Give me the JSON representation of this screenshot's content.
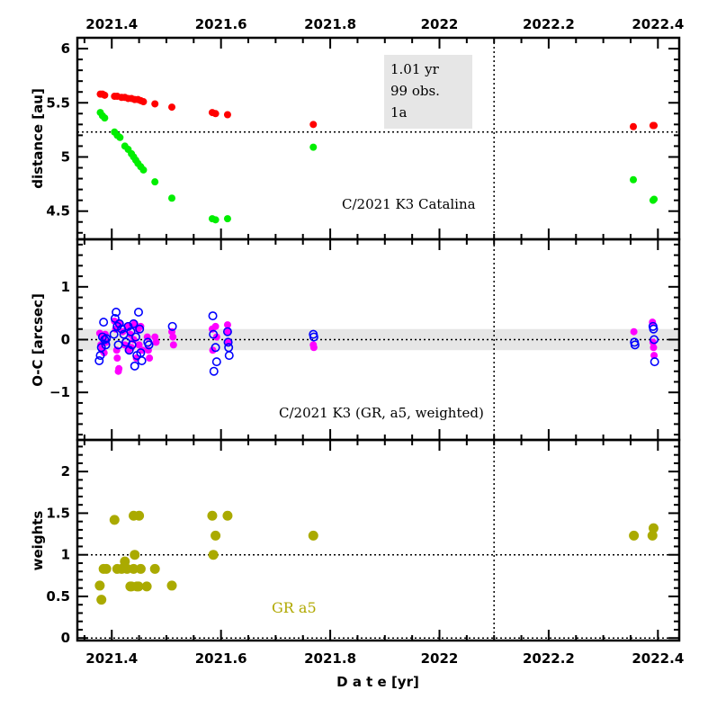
{
  "chart_data": {
    "type": "scatter",
    "xlabel": "D a t e [yr]",
    "xlim": [
      2021.337,
      2022.439
    ],
    "x_ticks": [
      "2021.4",
      "2021.6",
      "2021.8",
      "2022",
      "2022.2",
      "2022.4"
    ],
    "x_tick_values": [
      2021.4,
      2021.6,
      2021.8,
      2022.0,
      2022.2,
      2022.4
    ],
    "vertical_reference_line": 2022.1,
    "panels": [
      {
        "id": "distance",
        "ylabel": "distance [au]",
        "ylim": [
          4.24,
          6.1
        ],
        "y_ticks": [
          "4.5",
          "5",
          "5.5",
          "6"
        ],
        "y_tick_values": [
          4.5,
          5.0,
          5.5,
          6.0
        ],
        "horizontal_reference_line": 5.23,
        "annotation": "C/2021 K3 Catalina",
        "info_box": [
          "1.01 yr",
          "99 obs.",
          "1a"
        ],
        "series": [
          {
            "name": "heliocentric distance",
            "color": "#ff0000",
            "x": [
              2021.379,
              2021.383,
              2021.387,
              2021.405,
              2021.41,
              2021.418,
              2021.424,
              2021.43,
              2021.436,
              2021.442,
              2021.448,
              2021.453,
              2021.458,
              2021.479,
              2021.51,
              2021.584,
              2021.59,
              2021.612,
              2021.769,
              2022.355,
              2022.391,
              2022.393
            ],
            "y": [
              5.58,
              5.58,
              5.57,
              5.56,
              5.56,
              5.55,
              5.55,
              5.54,
              5.54,
              5.53,
              5.53,
              5.52,
              5.51,
              5.49,
              5.46,
              5.41,
              5.4,
              5.39,
              5.3,
              5.28,
              5.29,
              5.29
            ]
          },
          {
            "name": "geocentric distance",
            "color": "#00ee00",
            "x": [
              2021.379,
              2021.383,
              2021.387,
              2021.405,
              2021.41,
              2021.415,
              2021.424,
              2021.43,
              2021.436,
              2021.44,
              2021.444,
              2021.448,
              2021.453,
              2021.458,
              2021.479,
              2021.51,
              2021.584,
              2021.59,
              2021.612,
              2021.769,
              2022.355,
              2022.391,
              2022.393
            ],
            "y": [
              5.41,
              5.38,
              5.36,
              5.23,
              5.2,
              5.18,
              5.1,
              5.07,
              5.03,
              5.0,
              4.97,
              4.94,
              4.91,
              4.88,
              4.77,
              4.62,
              4.43,
              4.42,
              4.43,
              5.09,
              4.79,
              4.6,
              4.61
            ]
          }
        ]
      },
      {
        "id": "residuals",
        "ylabel": "O-C [arcsec]",
        "ylim": [
          -1.9,
          1.9
        ],
        "y_ticks": [
          "−1",
          "0",
          "1"
        ],
        "y_tick_values": [
          -1,
          0,
          1
        ],
        "horizontal_reference_line": 0,
        "band": [
          -0.2,
          0.2
        ],
        "annotation": "C/2021 K3 (GR, a5, weighted)",
        "series": [
          {
            "name": "RA residuals",
            "color": "#ff00ff",
            "marker": "filled",
            "x": [
              2021.378,
              2021.38,
              2021.382,
              2021.384,
              2021.386,
              2021.388,
              2021.39,
              2021.405,
              2021.407,
              2021.409,
              2021.41,
              2021.412,
              2021.413,
              2021.415,
              2021.42,
              2021.424,
              2021.428,
              2021.43,
              2021.434,
              2021.436,
              2021.44,
              2021.442,
              2021.445,
              2021.448,
              2021.45,
              2021.453,
              2021.456,
              2021.465,
              2021.467,
              2021.469,
              2021.479,
              2021.481,
              2021.51,
              2021.512,
              2021.513,
              2021.584,
              2021.585,
              2021.59,
              2021.592,
              2021.612,
              2021.613,
              2021.614,
              2021.769,
              2021.77,
              2022.356,
              2022.39,
              2022.391,
              2022.392,
              2022.393
            ],
            "y": [
              0.12,
              -0.1,
              -0.2,
              0.05,
              -0.25,
              0.1,
              -0.05,
              0.35,
              0.2,
              -0.2,
              -0.35,
              -0.6,
              -0.55,
              0.3,
              0.15,
              -0.1,
              0.25,
              -0.2,
              0.1,
              -0.15,
              0.0,
              0.3,
              -0.35,
              0.2,
              -0.1,
              0.25,
              -0.2,
              0.05,
              -0.2,
              -0.35,
              0.05,
              -0.05,
              0.15,
              0.05,
              -0.1,
              0.2,
              -0.2,
              0.25,
              0.05,
              0.28,
              0.15,
              -0.05,
              -0.1,
              -0.15,
              0.15,
              0.33,
              -0.05,
              -0.15,
              -0.3
            ]
          },
          {
            "name": "Dec residuals",
            "color": "#0000ff",
            "marker": "open",
            "x": [
              2021.377,
              2021.379,
              2021.381,
              2021.383,
              2021.385,
              2021.387,
              2021.389,
              2021.39,
              2021.404,
              2021.406,
              2021.408,
              2021.41,
              2021.412,
              2021.414,
              2021.418,
              2021.422,
              2021.426,
              2021.43,
              2021.432,
              2021.435,
              2021.437,
              2021.44,
              2021.442,
              2021.444,
              2021.446,
              2021.449,
              2021.451,
              2021.453,
              2021.455,
              2021.466,
              2021.468,
              2021.511,
              2021.585,
              2021.586,
              2021.587,
              2021.59,
              2021.592,
              2021.612,
              2021.613,
              2021.614,
              2021.615,
              2021.769,
              2021.77,
              2022.357,
              2022.358,
              2022.391,
              2022.392,
              2022.393,
              2022.394
            ],
            "y": [
              -0.4,
              -0.3,
              -0.15,
              0.05,
              0.33,
              0.0,
              -0.1,
              0.02,
              0.1,
              0.4,
              0.52,
              0.25,
              -0.1,
              0.3,
              0.2,
              0.1,
              -0.05,
              0.25,
              -0.2,
              0.15,
              -0.1,
              0.3,
              -0.5,
              0.05,
              -0.3,
              0.52,
              0.2,
              -0.25,
              -0.4,
              -0.05,
              -0.1,
              0.25,
              0.45,
              0.1,
              -0.6,
              -0.15,
              -0.42,
              0.15,
              -0.05,
              -0.15,
              -0.3,
              0.1,
              0.05,
              -0.05,
              -0.1,
              0.25,
              0.2,
              0.0,
              -0.42
            ]
          }
        ]
      },
      {
        "id": "weights",
        "ylabel": "weights",
        "ylim": [
          -0.03,
          2.38
        ],
        "y_ticks": [
          "0",
          "0.5",
          "1",
          "1.5",
          "2"
        ],
        "y_tick_values": [
          0,
          0.5,
          1,
          1.5,
          2
        ],
        "horizontal_reference_lines": [
          1,
          0
        ],
        "annotation": "GR a5",
        "series": [
          {
            "name": "weights",
            "color": "#aaaa00",
            "x": [
              2021.378,
              2021.381,
              2021.385,
              2021.39,
              2021.405,
              2021.41,
              2021.418,
              2021.424,
              2021.428,
              2021.434,
              2021.436,
              2021.44,
              2021.442,
              2021.446,
              2021.45,
              2021.453,
              2021.44,
              2021.449,
              2021.464,
              2021.479,
              2021.51,
              2021.584,
              2021.59,
              2021.586,
              2021.612,
              2021.769,
              2022.356,
              2022.39,
              2022.392
            ],
            "y": [
              0.63,
              0.46,
              0.83,
              0.83,
              1.42,
              0.83,
              0.83,
              0.92,
              0.83,
              0.62,
              0.62,
              0.83,
              1.0,
              0.62,
              1.47,
              0.83,
              1.47,
              0.62,
              0.62,
              0.83,
              0.63,
              1.47,
              1.23,
              1.0,
              1.47,
              1.23,
              1.23,
              1.23,
              1.32
            ]
          }
        ]
      }
    ]
  }
}
